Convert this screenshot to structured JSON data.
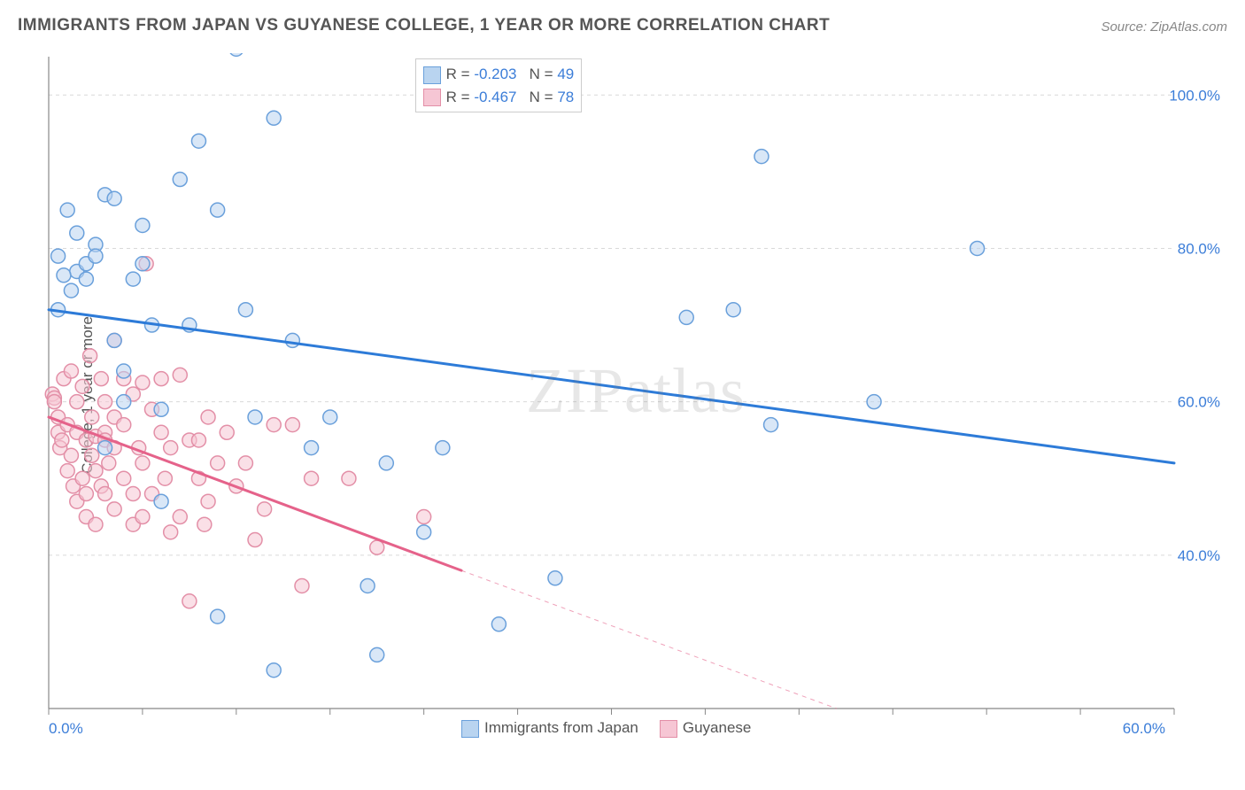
{
  "title": "IMMIGRANTS FROM JAPAN VS GUYANESE COLLEGE, 1 YEAR OR MORE CORRELATION CHART",
  "source": "Source: ZipAtlas.com",
  "watermark": "ZIPatlas",
  "y_axis_label": "College, 1 year or more",
  "legend_top": {
    "series": [
      {
        "r_label": "R =",
        "r_value": "-0.203",
        "n_label": "N =",
        "n_value": "49",
        "fill": "#b9d4f0",
        "stroke": "#6aa0db"
      },
      {
        "r_label": "R =",
        "r_value": "-0.467",
        "n_label": "N =",
        "n_value": "78",
        "fill": "#f6c6d4",
        "stroke": "#e38fa7"
      }
    ]
  },
  "legend_bottom": {
    "items": [
      {
        "label": "Immigrants from Japan",
        "fill": "#b9d4f0",
        "stroke": "#6aa0db"
      },
      {
        "label": "Guyanese",
        "fill": "#f6c6d4",
        "stroke": "#e38fa7"
      }
    ]
  },
  "chart": {
    "type": "scatter",
    "background_color": "#ffffff",
    "grid_color": "#d9d9d9",
    "axis_line_color": "#888888",
    "tick_color": "#888888",
    "label_color": "#3b7dd8",
    "label_fontsize": 17,
    "x": {
      "min": 0,
      "max": 60,
      "ticks": [
        0,
        5,
        10,
        15,
        20,
        25,
        30,
        35,
        40,
        45,
        50,
        55,
        60
      ],
      "labeled_ticks": [
        0,
        60
      ],
      "label_format": "%.1f%%"
    },
    "y": {
      "min": 20,
      "max": 105,
      "gridlines": [
        40,
        60,
        80,
        100
      ],
      "labeled_ticks": [
        40,
        60,
        80,
        100
      ],
      "label_format": "%.1f%%"
    },
    "marker": {
      "radius": 8,
      "stroke_width": 1.5,
      "fill_opacity": 0.55
    },
    "series_blue": {
      "fill": "#b9d4f0",
      "stroke": "#6aa0db",
      "trend": {
        "stroke": "#2d7bd8",
        "width": 3,
        "y_at_xmin": 72,
        "y_at_xmax": 52
      },
      "points": [
        [
          0.5,
          72
        ],
        [
          0.5,
          79
        ],
        [
          1,
          85
        ],
        [
          1.5,
          82
        ],
        [
          1.5,
          77
        ],
        [
          2,
          78
        ],
        [
          2.5,
          80.5
        ],
        [
          2.5,
          79
        ],
        [
          3,
          87
        ],
        [
          3.5,
          86.5
        ],
        [
          3.5,
          68
        ],
        [
          4,
          64
        ],
        [
          4,
          60
        ],
        [
          3,
          54
        ],
        [
          5,
          78
        ],
        [
          5.5,
          70
        ],
        [
          6,
          59
        ],
        [
          6,
          47
        ],
        [
          7,
          89
        ],
        [
          7.5,
          70
        ],
        [
          8,
          94
        ],
        [
          9,
          85
        ],
        [
          10,
          106
        ],
        [
          10.5,
          72
        ],
        [
          11,
          58
        ],
        [
          12,
          97
        ],
        [
          12,
          25
        ],
        [
          9,
          32
        ],
        [
          13,
          68
        ],
        [
          14,
          54
        ],
        [
          15,
          58
        ],
        [
          17,
          36
        ],
        [
          17.5,
          27
        ],
        [
          18,
          52
        ],
        [
          20,
          43
        ],
        [
          21,
          54
        ],
        [
          24,
          31
        ],
        [
          27,
          37
        ],
        [
          34,
          71
        ],
        [
          36.5,
          72
        ],
        [
          38,
          92
        ],
        [
          44,
          60
        ],
        [
          49.5,
          80
        ],
        [
          38.5,
          57
        ],
        [
          5,
          83
        ],
        [
          4.5,
          76
        ],
        [
          2,
          76
        ],
        [
          0.8,
          76.5
        ],
        [
          1.2,
          74.5
        ]
      ]
    },
    "series_pink": {
      "fill": "#f6c6d4",
      "stroke": "#e38fa7",
      "trend": {
        "stroke": "#e5628a",
        "width": 3,
        "y_at_xmin": 58,
        "y_at_xmax_data": 38,
        "x_max_data": 22,
        "y_at_xmax_extrap": 20,
        "x_max_extrap": 42
      },
      "points": [
        [
          0.2,
          61
        ],
        [
          0.3,
          60.5
        ],
        [
          0.3,
          60
        ],
        [
          0.5,
          58
        ],
        [
          0.5,
          56
        ],
        [
          0.6,
          54
        ],
        [
          0.7,
          55
        ],
        [
          0.8,
          63
        ],
        [
          1,
          57
        ],
        [
          1,
          51
        ],
        [
          1.2,
          64
        ],
        [
          1.2,
          53
        ],
        [
          1.3,
          49
        ],
        [
          1.5,
          60
        ],
        [
          1.5,
          56
        ],
        [
          1.5,
          47
        ],
        [
          1.8,
          62
        ],
        [
          1.8,
          50
        ],
        [
          2,
          55
        ],
        [
          2,
          48
        ],
        [
          2,
          45
        ],
        [
          2.2,
          66
        ],
        [
          2.3,
          58
        ],
        [
          2.3,
          53
        ],
        [
          2.5,
          55.5
        ],
        [
          2.5,
          51
        ],
        [
          2.5,
          44
        ],
        [
          2.8,
          63
        ],
        [
          2.8,
          49
        ],
        [
          3,
          60
        ],
        [
          3,
          56
        ],
        [
          3,
          55
        ],
        [
          3,
          48
        ],
        [
          3.2,
          52
        ],
        [
          3.5,
          58
        ],
        [
          3.5,
          54
        ],
        [
          3.5,
          46
        ],
        [
          4,
          63
        ],
        [
          4,
          57
        ],
        [
          4,
          50
        ],
        [
          4.5,
          61
        ],
        [
          4.5,
          48
        ],
        [
          4.5,
          44
        ],
        [
          4.8,
          54
        ],
        [
          5,
          62.5
        ],
        [
          5,
          52
        ],
        [
          5,
          45
        ],
        [
          5.2,
          78
        ],
        [
          5.5,
          59
        ],
        [
          5.5,
          48
        ],
        [
          6,
          63
        ],
        [
          6,
          56
        ],
        [
          6.2,
          50
        ],
        [
          6.5,
          54
        ],
        [
          6.5,
          43
        ],
        [
          7,
          45
        ],
        [
          7,
          63.5
        ],
        [
          7.5,
          55
        ],
        [
          7.5,
          34
        ],
        [
          8,
          50
        ],
        [
          8,
          55
        ],
        [
          8.5,
          58
        ],
        [
          8.5,
          47
        ],
        [
          9,
          52
        ],
        [
          9.5,
          56
        ],
        [
          3.5,
          68
        ],
        [
          10,
          49
        ],
        [
          10.5,
          52
        ],
        [
          11,
          42
        ],
        [
          11.5,
          46
        ],
        [
          12,
          57
        ],
        [
          13,
          57
        ],
        [
          13.5,
          36
        ],
        [
          14,
          50
        ],
        [
          16,
          50
        ],
        [
          17.5,
          41
        ],
        [
          20,
          45
        ],
        [
          8.3,
          44
        ]
      ]
    }
  }
}
